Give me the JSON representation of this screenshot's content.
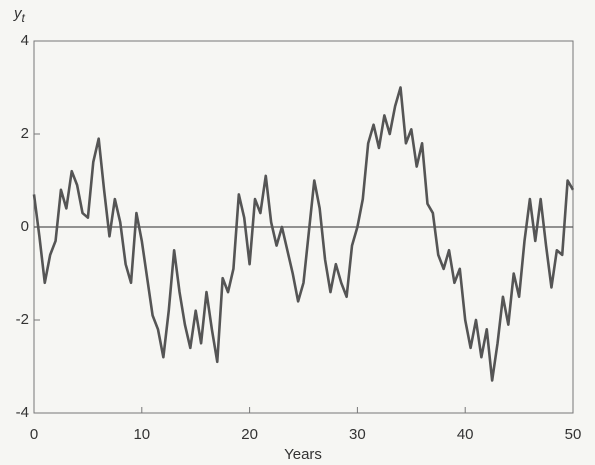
{
  "chart_data": {
    "type": "line",
    "xlabel": "Years",
    "ylabel": "y",
    "ylabel_subscript": "t",
    "x": [
      0,
      0.5,
      1,
      1.5,
      2,
      2.5,
      3,
      3.5,
      4,
      4.5,
      5,
      5.5,
      6,
      6.5,
      7,
      7.5,
      8,
      8.5,
      9,
      9.5,
      10,
      10.5,
      11,
      11.5,
      12,
      12.5,
      13,
      13.5,
      14,
      14.5,
      15,
      15.5,
      16,
      16.5,
      17,
      17.5,
      18,
      18.5,
      19,
      19.5,
      20,
      20.5,
      21,
      21.5,
      22,
      22.5,
      23,
      23.5,
      24,
      24.5,
      25,
      25.5,
      26,
      26.5,
      27,
      27.5,
      28,
      28.5,
      29,
      29.5,
      30,
      30.5,
      31,
      31.5,
      32,
      32.5,
      33,
      33.5,
      34,
      34.5,
      35,
      35.5,
      36,
      36.5,
      37,
      37.5,
      38,
      38.5,
      39,
      39.5,
      40,
      40.5,
      41,
      41.5,
      42,
      42.5,
      43,
      43.5,
      44,
      44.5,
      45,
      45.5,
      46,
      46.5,
      47,
      47.5,
      48,
      48.5,
      49,
      49.5,
      50
    ],
    "series": [
      {
        "color": "#555555",
        "values": [
          0.7,
          -0.2,
          -1.2,
          -0.6,
          -0.3,
          0.8,
          0.4,
          1.2,
          0.9,
          0.3,
          0.2,
          1.4,
          1.9,
          0.8,
          -0.2,
          0.6,
          0.1,
          -0.8,
          -1.2,
          0.3,
          -0.3,
          -1.1,
          -1.9,
          -2.2,
          -2.8,
          -1.8,
          -0.5,
          -1.4,
          -2.1,
          -2.6,
          -1.8,
          -2.5,
          -1.4,
          -2.2,
          -2.9,
          -1.1,
          -1.4,
          -0.9,
          0.7,
          0.2,
          -0.8,
          0.6,
          0.3,
          1.1,
          0.1,
          -0.4,
          0.0,
          -0.5,
          -1.0,
          -1.6,
          -1.2,
          -0.1,
          1.0,
          0.4,
          -0.7,
          -1.4,
          -0.8,
          -1.2,
          -1.5,
          -0.4,
          0.0,
          0.6,
          1.8,
          2.2,
          1.7,
          2.4,
          2.0,
          2.6,
          3.0,
          1.8,
          2.1,
          1.3,
          1.8,
          0.5,
          0.3,
          -0.6,
          -0.9,
          -0.5,
          -1.2,
          -0.9,
          -2.0,
          -2.6,
          -2.0,
          -2.8,
          -2.2,
          -3.3,
          -2.5,
          -1.5,
          -2.1,
          -1.0,
          -1.5,
          -0.3,
          0.6,
          -0.3,
          0.6,
          -0.4,
          -1.3,
          -0.5,
          -0.6,
          1.0,
          0.8
        ]
      }
    ],
    "hline": 0,
    "xlim": [
      0,
      50
    ],
    "ylim": [
      -4,
      4
    ],
    "xticks": [
      0,
      10,
      20,
      30,
      40,
      50
    ],
    "yticks": [
      -4,
      -2,
      0,
      2,
      4
    ]
  }
}
